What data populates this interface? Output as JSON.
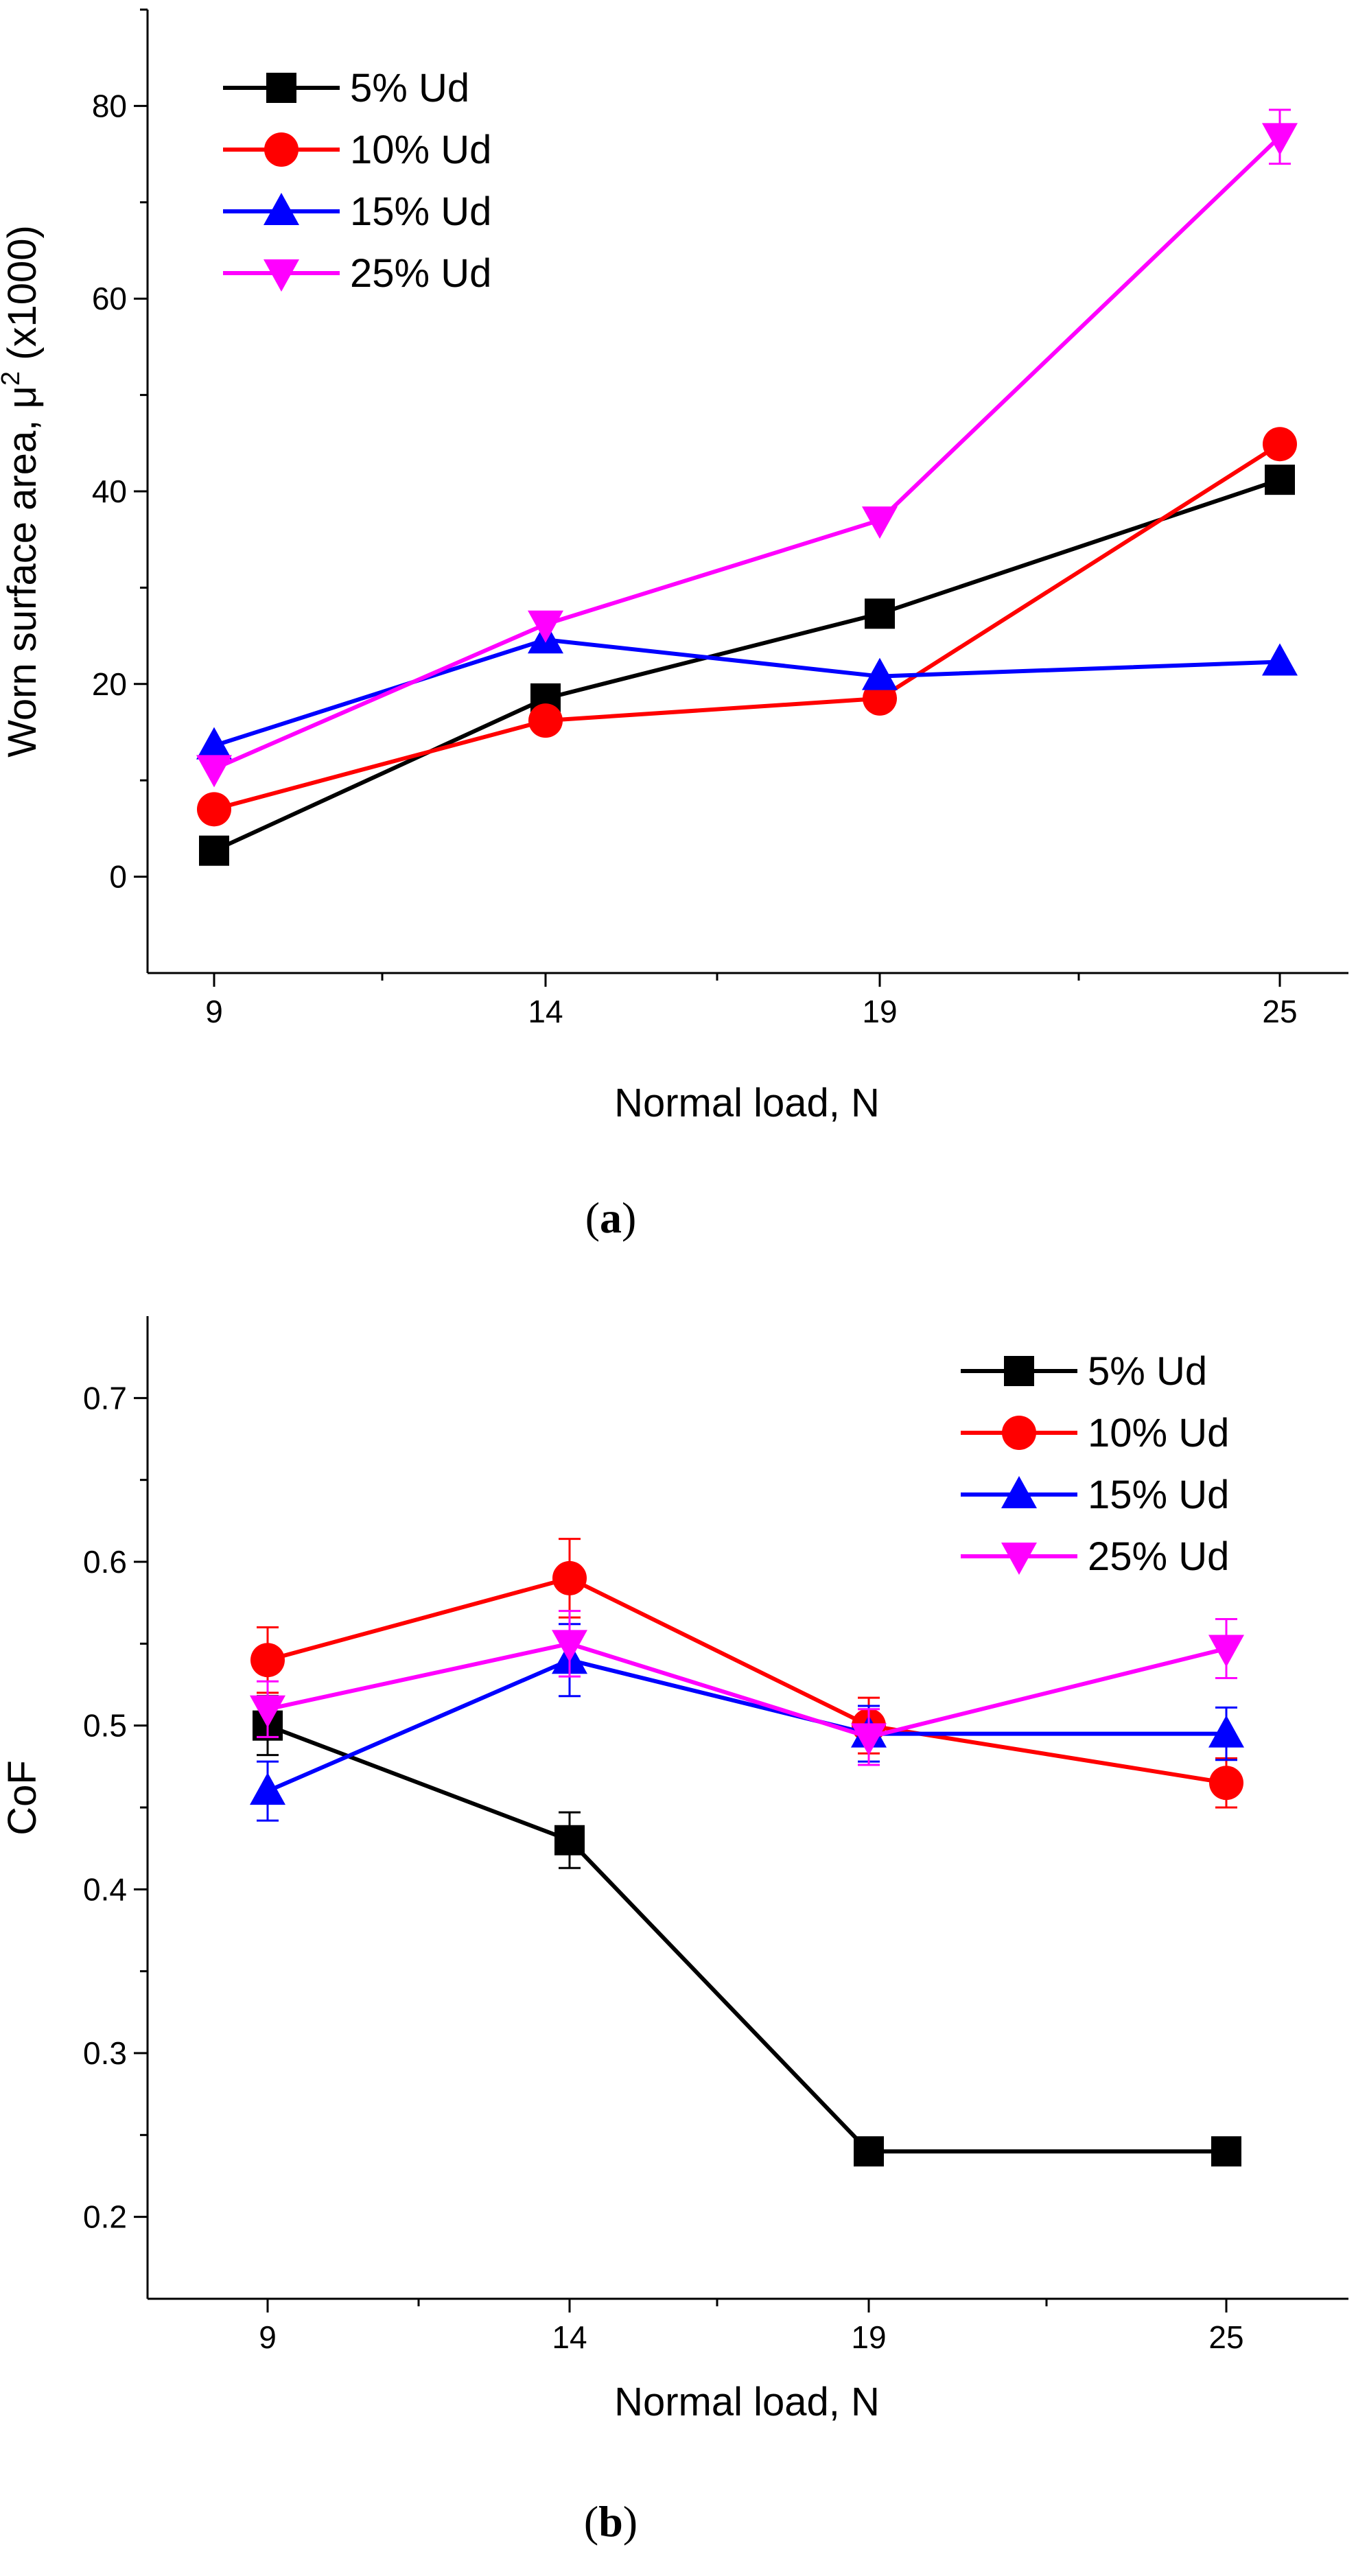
{
  "colors": {
    "5% Ud": "#000000",
    "10% Ud": "#ff0000",
    "15% Ud": "#0000ff",
    "25% Ud": "#ff00ff"
  },
  "chart_data": [
    {
      "type": "line",
      "caption": "a",
      "xlabel": "Normal load, N",
      "ylabel_parts": [
        "Worn surface area, μ",
        "2",
        " (x1000)"
      ],
      "x": [
        9,
        14,
        19,
        25
      ],
      "x_tick_labels": [
        "9",
        "14",
        "19",
        "25"
      ],
      "y_tick_values": [
        0,
        20,
        40,
        60,
        80
      ],
      "y_tick_labels": [
        "0",
        "20",
        "40",
        "60",
        "80"
      ],
      "ylim": [
        -10,
        90
      ],
      "legend_position": "top-left",
      "series": [
        {
          "name": "5% Ud",
          "marker": "square",
          "color": "#000000",
          "values": [
            2.7,
            18.5,
            27.3,
            41.2
          ],
          "errors": [
            0,
            0,
            0,
            0
          ]
        },
        {
          "name": "10% Ud",
          "marker": "circle",
          "color": "#ff0000",
          "values": [
            7.0,
            16.2,
            18.5,
            44.9
          ],
          "errors": [
            0,
            0,
            0,
            0
          ]
        },
        {
          "name": "15% Ud",
          "marker": "triangle-up",
          "color": "#0000ff",
          "values": [
            13.6,
            24.6,
            20.8,
            22.3
          ],
          "errors": [
            0,
            0,
            0,
            0
          ]
        },
        {
          "name": "25% Ud",
          "marker": "triangle-down",
          "color": "#ff00ff",
          "values": [
            11.2,
            26.2,
            37.0,
            76.8
          ],
          "errors": [
            0,
            0,
            0,
            2.8
          ]
        }
      ]
    },
    {
      "type": "line",
      "caption": "b",
      "xlabel": "Normal load, N",
      "ylabel": "CoF",
      "x": [
        9,
        14,
        19,
        25
      ],
      "x_tick_labels": [
        "9",
        "14",
        "19",
        "25"
      ],
      "y_tick_values": [
        0.2,
        0.3,
        0.4,
        0.5,
        0.6,
        0.7
      ],
      "y_tick_labels": [
        "0.2",
        "0.3",
        "0.4",
        "0.5",
        "0.6",
        "0.7"
      ],
      "ylim": [
        0.15,
        0.75
      ],
      "legend_position": "top-right",
      "series": [
        {
          "name": "5% Ud",
          "marker": "square",
          "color": "#000000",
          "values": [
            0.5,
            0.43,
            0.24,
            0.24
          ],
          "errors": [
            0.018,
            0.017,
            0,
            0
          ]
        },
        {
          "name": "10% Ud",
          "marker": "circle",
          "color": "#ff0000",
          "values": [
            0.54,
            0.59,
            0.5,
            0.465
          ],
          "errors": [
            0.02,
            0.024,
            0.017,
            0.015
          ]
        },
        {
          "name": "15% Ud",
          "marker": "triangle-up",
          "color": "#0000ff",
          "values": [
            0.46,
            0.54,
            0.495,
            0.495
          ],
          "errors": [
            0.018,
            0.022,
            0.017,
            0.016
          ]
        },
        {
          "name": "25% Ud",
          "marker": "triangle-down",
          "color": "#ff00ff",
          "values": [
            0.51,
            0.55,
            0.493,
            0.547
          ],
          "errors": [
            0.017,
            0.02,
            0.017,
            0.018
          ]
        }
      ]
    }
  ]
}
